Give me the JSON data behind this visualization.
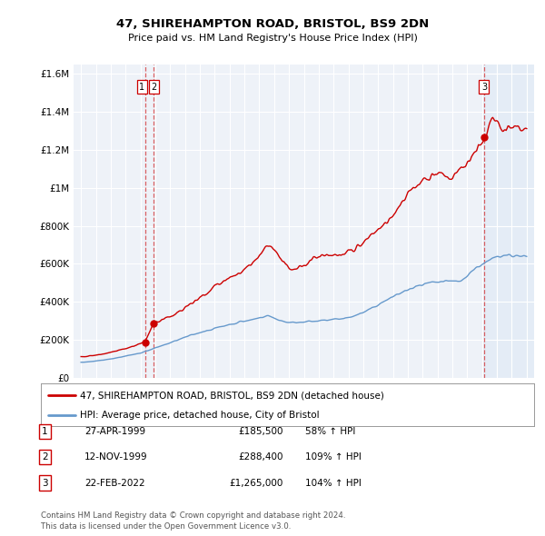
{
  "title1": "47, SHIREHAMPTON ROAD, BRISTOL, BS9 2DN",
  "title2": "Price paid vs. HM Land Registry's House Price Index (HPI)",
  "legend_line1": "47, SHIREHAMPTON ROAD, BRISTOL, BS9 2DN (detached house)",
  "legend_line2": "HPI: Average price, detached house, City of Bristol",
  "footnote1": "Contains HM Land Registry data © Crown copyright and database right 2024.",
  "footnote2": "This data is licensed under the Open Government Licence v3.0.",
  "transactions": [
    {
      "id": 1,
      "date": "27-APR-1999",
      "price": 185500,
      "x_year": 1999.32
    },
    {
      "id": 2,
      "date": "12-NOV-1999",
      "price": 288400,
      "x_year": 1999.86
    },
    {
      "id": 3,
      "date": "22-FEB-2022",
      "price": 1265000,
      "x_year": 2022.13
    }
  ],
  "table_rows": [
    {
      "id": "1",
      "date": "27-APR-1999",
      "price": "£185,500",
      "change": "58% ↑ HPI"
    },
    {
      "id": "2",
      "date": "12-NOV-1999",
      "price": "£288,400",
      "change": "109% ↑ HPI"
    },
    {
      "id": "3",
      "date": "22-FEB-2022",
      "price": "£1,265,000",
      "change": "104% ↑ HPI"
    }
  ],
  "hpi_color": "#6699cc",
  "price_color": "#cc0000",
  "dashed_color": "#cc0000",
  "background_plot": "#eef2f8",
  "background_fig": "#ffffff",
  "background_right": "#dce8f5",
  "ylim": [
    0,
    1650000
  ],
  "yticks": [
    0,
    200000,
    400000,
    600000,
    800000,
    1000000,
    1200000,
    1400000,
    1600000
  ],
  "xlim": [
    1994.5,
    2025.5
  ],
  "xticks": [
    1995,
    1996,
    1997,
    1998,
    1999,
    2000,
    2001,
    2002,
    2003,
    2004,
    2005,
    2006,
    2007,
    2008,
    2009,
    2010,
    2011,
    2012,
    2013,
    2014,
    2015,
    2016,
    2017,
    2018,
    2019,
    2020,
    2021,
    2022,
    2023,
    2024,
    2025
  ],
  "figsize": [
    6.0,
    5.9
  ],
  "dpi": 100
}
